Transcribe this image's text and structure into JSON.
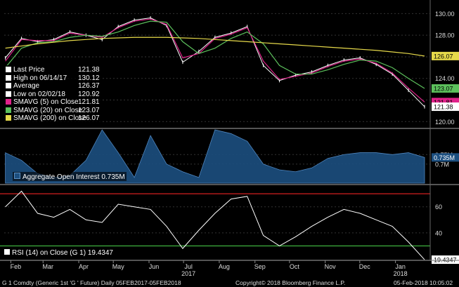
{
  "chart_data": [
    {
      "type": "line",
      "panel": "price",
      "ylim": [
        119.5,
        131
      ],
      "yticks": [
        120,
        122,
        124,
        126,
        128,
        130
      ],
      "x": [
        "2017-02-06",
        "2017-02-20",
        "2017-03-06",
        "2017-03-20",
        "2017-04-03",
        "2017-04-17",
        "2017-05-01",
        "2017-05-15",
        "2017-05-29",
        "2017-06-12",
        "2017-06-26",
        "2017-07-10",
        "2017-07-24",
        "2017-08-07",
        "2017-08-21",
        "2017-09-04",
        "2017-09-18",
        "2017-10-02",
        "2017-10-16",
        "2017-10-30",
        "2017-11-13",
        "2017-11-27",
        "2017-12-11",
        "2017-12-25",
        "2018-01-08",
        "2018-01-22",
        "2018-02-05"
      ],
      "series": [
        {
          "name": "Last Price",
          "color": "#ffffff",
          "values": [
            125.9,
            127.7,
            127.4,
            127.6,
            128.3,
            128.0,
            127.6,
            128.8,
            129.4,
            129.6,
            128.9,
            125.5,
            126.5,
            127.8,
            128.2,
            128.8,
            125.2,
            123.8,
            124.3,
            124.6,
            125.2,
            125.7,
            125.9,
            125.3,
            124.4,
            122.9,
            121.38
          ]
        },
        {
          "name": "SMAVG (5) on Close",
          "color": "#e0218a",
          "values": [
            125.6,
            127.6,
            127.5,
            127.5,
            128.2,
            128.0,
            127.8,
            128.7,
            129.3,
            129.5,
            129.0,
            125.9,
            126.3,
            127.7,
            128.1,
            128.7,
            125.6,
            123.9,
            124.2,
            124.5,
            125.1,
            125.6,
            125.8,
            125.4,
            124.5,
            123.1,
            121.81
          ]
        },
        {
          "name": "SMAVG (20) on Close",
          "color": "#5cc05c",
          "values": [
            125.0,
            126.8,
            127.3,
            127.4,
            127.8,
            128.0,
            127.9,
            128.3,
            128.9,
            129.3,
            129.2,
            127.4,
            126.3,
            126.8,
            127.7,
            128.3,
            127.2,
            125.2,
            124.4,
            124.4,
            124.8,
            125.3,
            125.7,
            125.6,
            125.0,
            124.0,
            123.07
          ]
        },
        {
          "name": "SMAVG (200) on Close",
          "color": "#e6d94a",
          "values": [
            126.8,
            127.0,
            127.2,
            127.35,
            127.5,
            127.6,
            127.7,
            127.75,
            127.8,
            127.8,
            127.8,
            127.75,
            127.7,
            127.6,
            127.5,
            127.4,
            127.3,
            127.2,
            127.1,
            127.0,
            126.9,
            126.8,
            126.7,
            126.6,
            126.45,
            126.3,
            126.07
          ]
        }
      ],
      "legend": [
        {
          "label": "Last Price",
          "value": "121.38",
          "swatch": "#ffffff"
        },
        {
          "label": "High on 06/14/17",
          "value": "130.12",
          "swatch": "#ffffff"
        },
        {
          "label": "Average",
          "value": "126.37",
          "swatch": "#ffffff"
        },
        {
          "label": "Low on 02/02/18",
          "value": "120.92",
          "swatch": "#ffffff"
        },
        {
          "label": "SMAVG (5) on Close",
          "value": "121.81",
          "swatch": "#e0218a"
        },
        {
          "label": "SMAVG (20) on Close",
          "value": "123.07",
          "swatch": "#5cc05c"
        },
        {
          "label": "SMAVG (200) on Close",
          "value": "126.07",
          "swatch": "#e6d94a"
        }
      ],
      "axis_tags": [
        {
          "value": 126.07,
          "label": "126.07",
          "color": "#e6d94a"
        },
        {
          "value": 123.07,
          "label": "123.07",
          "color": "#5cc05c"
        },
        {
          "value": 121.81,
          "label": "121.81",
          "color": "#e0218a"
        },
        {
          "value": 121.38,
          "label": "121.38",
          "color": "#000000"
        }
      ]
    },
    {
      "type": "area",
      "panel": "open_interest",
      "ylim": [
        0.6,
        0.88
      ],
      "yticks": [
        {
          "value": 0.75,
          "label": "0.75M"
        },
        {
          "value": 0.7,
          "label": "0.7M"
        }
      ],
      "x": [
        "2017-02-06",
        "2017-02-20",
        "2017-03-06",
        "2017-03-20",
        "2017-04-03",
        "2017-04-17",
        "2017-05-01",
        "2017-05-15",
        "2017-05-29",
        "2017-06-12",
        "2017-06-26",
        "2017-07-10",
        "2017-07-24",
        "2017-08-07",
        "2017-08-21",
        "2017-09-04",
        "2017-09-18",
        "2017-10-02",
        "2017-10-16",
        "2017-10-30",
        "2017-11-13",
        "2017-11-27",
        "2017-12-11",
        "2017-12-25",
        "2018-01-08",
        "2018-01-22",
        "2018-02-05"
      ],
      "series": [
        {
          "name": "Aggregate Open Interest",
          "color": "#1c4f80",
          "values": [
            0.76,
            0.72,
            0.65,
            0.63,
            0.64,
            0.72,
            0.88,
            0.76,
            0.63,
            0.85,
            0.7,
            0.66,
            0.63,
            0.88,
            0.86,
            0.82,
            0.7,
            0.67,
            0.66,
            0.68,
            0.73,
            0.75,
            0.76,
            0.76,
            0.75,
            0.76,
            0.735
          ]
        }
      ],
      "legend": [
        {
          "label": "Aggregate Open Interest",
          "value": "0.735M"
        }
      ],
      "axis_tags": [
        {
          "value": 0.735,
          "label": "0.735M",
          "color": "#1c4f80"
        }
      ]
    },
    {
      "type": "line",
      "panel": "rsi",
      "ylim": [
        20,
        76
      ],
      "yticks": [
        40,
        60
      ],
      "reference_lines": [
        70,
        30
      ],
      "x": [
        "2017-02-06",
        "2017-02-20",
        "2017-03-06",
        "2017-03-20",
        "2017-04-03",
        "2017-04-17",
        "2017-05-01",
        "2017-05-15",
        "2017-05-29",
        "2017-06-12",
        "2017-06-26",
        "2017-07-10",
        "2017-07-24",
        "2017-08-07",
        "2017-08-21",
        "2017-09-04",
        "2017-09-18",
        "2017-10-02",
        "2017-10-16",
        "2017-10-30",
        "2017-11-13",
        "2017-11-27",
        "2017-12-11",
        "2017-12-25",
        "2018-01-08",
        "2018-01-22",
        "2018-02-05"
      ],
      "series": [
        {
          "name": "RSI (14) on Close (G 1)",
          "color": "#ffffff",
          "values": [
            60,
            72,
            55,
            52,
            58,
            50,
            48,
            62,
            60,
            58,
            45,
            28,
            42,
            55,
            66,
            68,
            38,
            30,
            37,
            45,
            52,
            58,
            55,
            50,
            45,
            33,
            19.4347
          ]
        }
      ],
      "legend": [
        {
          "label": "RSI (14) on Close (G 1)",
          "value": "19.4347"
        }
      ],
      "axis_tags": [
        {
          "value": 19.4347,
          "label": "19.4347",
          "color": "#000000"
        }
      ]
    }
  ],
  "x_axis": {
    "months": [
      "Feb",
      "Mar",
      "Apr",
      "May",
      "Jun",
      "Jul",
      "Aug",
      "Sep",
      "Oct",
      "Nov",
      "Dec",
      "Jan"
    ],
    "years": [
      "2017",
      "2018"
    ]
  },
  "footer": {
    "ticker": "G 1 Comdty (Generic 1st 'G ' Future)  Daily 05FEB2017-05FEB2018",
    "copyright": "Copyright© 2018 Bloomberg Finance L.P.",
    "timestamp": "05-Feb-2018 10:05:02"
  }
}
